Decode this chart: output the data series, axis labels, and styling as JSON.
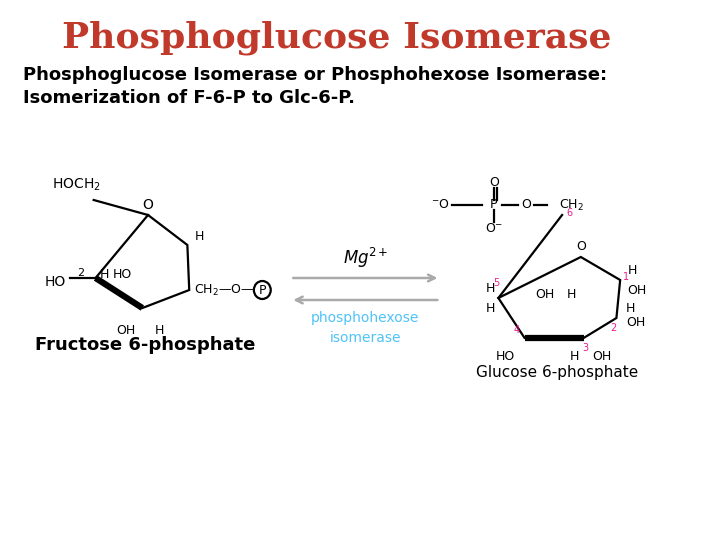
{
  "title": "Phosphoglucose Isomerase",
  "title_color": "#C0392B",
  "title_fontsize": 26,
  "subtitle_line1": "Phosphoglucose Isomerase or Phosphohexose Isomerase:",
  "subtitle_line2": "Isomerization of F-6-P to Glc-6-P.",
  "subtitle_fontsize": 13,
  "subtitle_color": "#000000",
  "bg_color": "#ffffff",
  "arrow_color": "#aaaaaa",
  "mg_label": "Mg$^{2+}$",
  "enzyme_line1": "phosphohexose",
  "enzyme_line2": "isomerase",
  "enzyme_color": "#4FC3F7",
  "fructose_label": "Fructose 6-phosphate",
  "glucose_label": "Glucose 6-phosphate",
  "black": "#000000",
  "pink": "#E91E8C",
  "lw": 1.6,
  "bold_lw": 4.5
}
